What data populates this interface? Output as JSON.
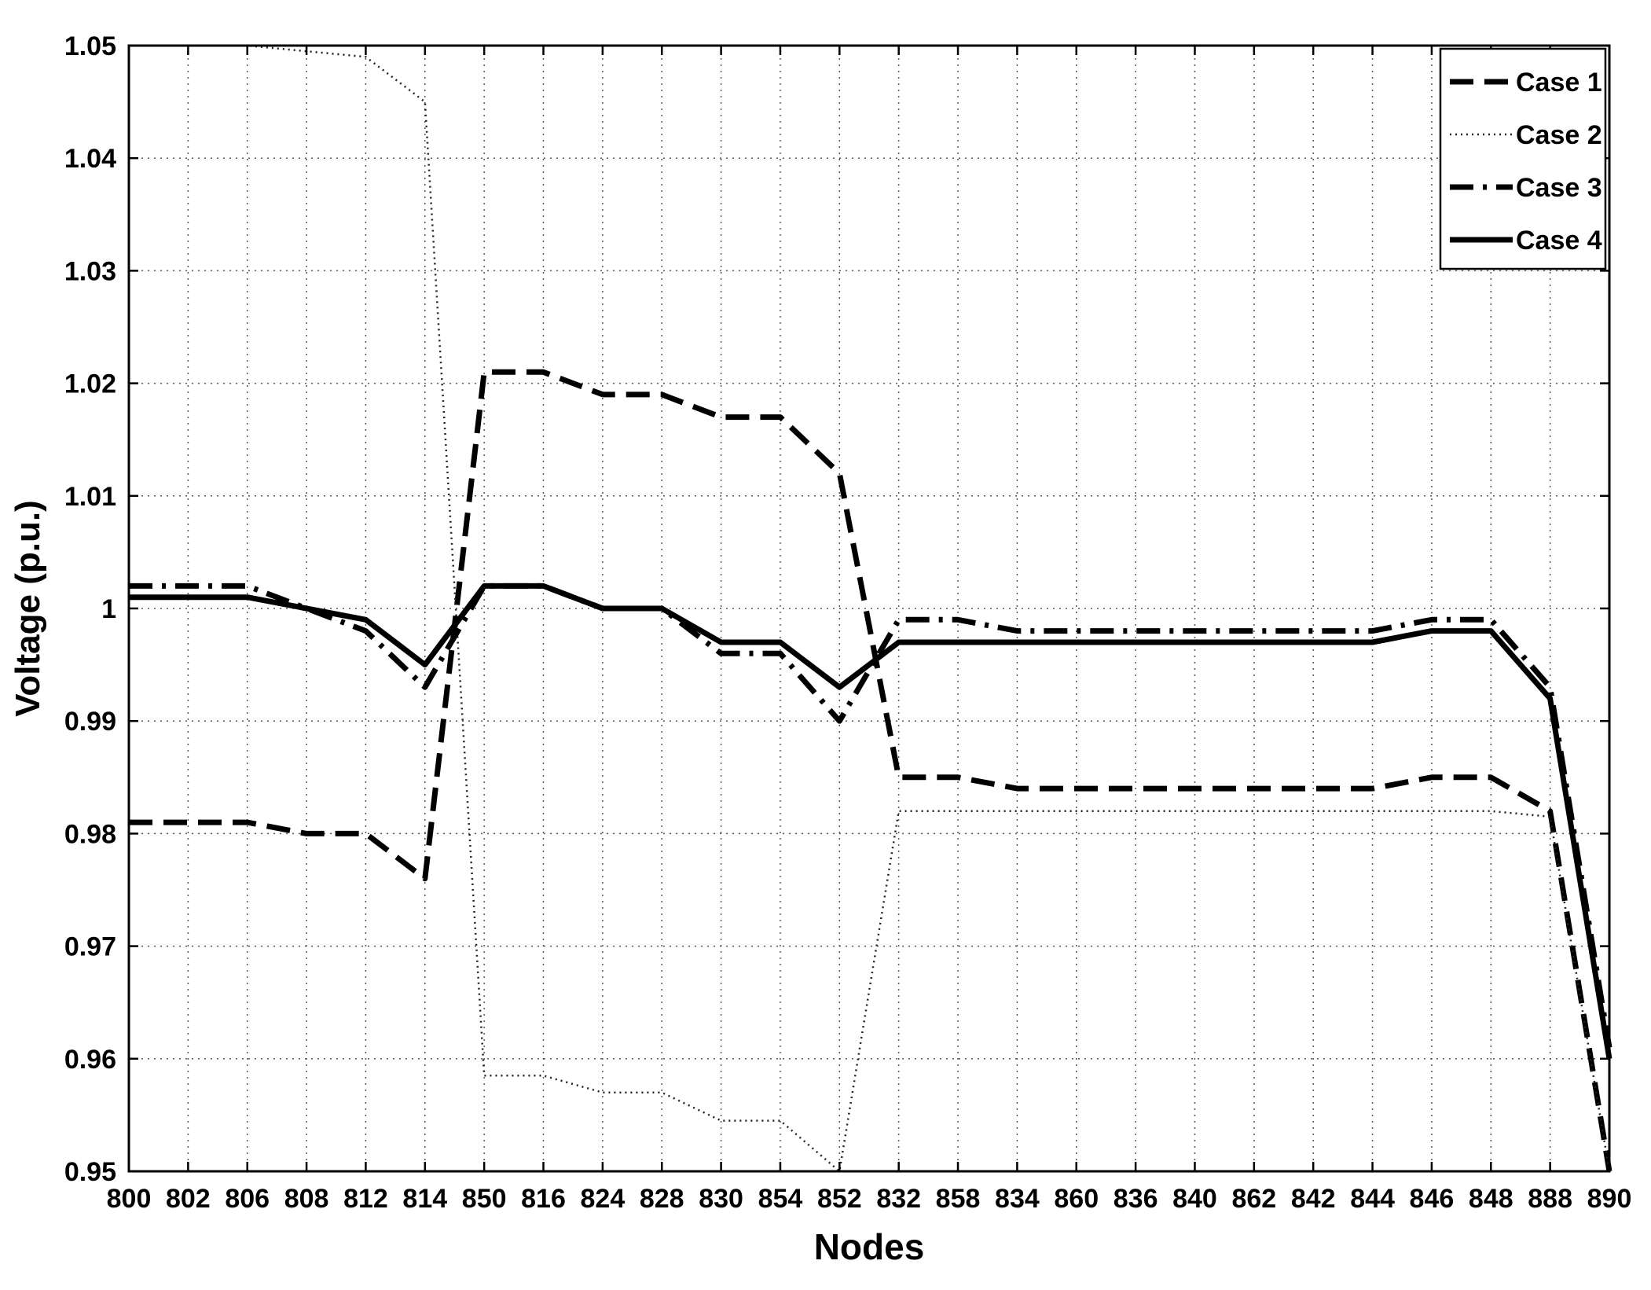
{
  "chart_data": {
    "type": "line",
    "title": "",
    "xlabel": "Nodes",
    "ylabel": "Voltage (p.u.)",
    "categories": [
      "800",
      "802",
      "806",
      "808",
      "812",
      "814",
      "850",
      "816",
      "824",
      "828",
      "830",
      "854",
      "852",
      "832",
      "858",
      "834",
      "860",
      "836",
      "840",
      "862",
      "842",
      "844",
      "846",
      "848",
      "888",
      "890"
    ],
    "ylim": [
      0.95,
      1.05
    ],
    "yticks": [
      "0.95",
      "0.96",
      "0.97",
      "0.98",
      "0.99",
      "1",
      "1.01",
      "1.02",
      "1.03",
      "1.04",
      "1.05"
    ],
    "grid": true,
    "legend_position": "top-right",
    "series": [
      {
        "name": "Case 1",
        "style": "dashed",
        "values": [
          0.981,
          0.981,
          0.981,
          0.98,
          0.98,
          0.976,
          1.021,
          1.021,
          1.019,
          1.019,
          1.017,
          1.017,
          1.012,
          0.985,
          0.985,
          0.984,
          0.984,
          0.984,
          0.984,
          0.984,
          0.984,
          0.984,
          0.985,
          0.985,
          0.982,
          0.95
        ]
      },
      {
        "name": "Case 2",
        "style": "dotted",
        "values": [
          1.05,
          1.05,
          1.05,
          1.0495,
          1.049,
          1.045,
          0.9585,
          0.9585,
          0.957,
          0.957,
          0.9545,
          0.9545,
          0.95,
          0.982,
          0.982,
          0.982,
          0.982,
          0.982,
          0.982,
          0.982,
          0.982,
          0.982,
          0.982,
          0.982,
          0.9815,
          0.95
        ]
      },
      {
        "name": "Case 3",
        "style": "dash-dot",
        "values": [
          1.002,
          1.002,
          1.002,
          1.0,
          0.998,
          0.993,
          1.002,
          1.002,
          1.0,
          1.0,
          0.996,
          0.996,
          0.99,
          0.999,
          0.999,
          0.998,
          0.998,
          0.998,
          0.998,
          0.998,
          0.998,
          0.998,
          0.999,
          0.999,
          0.993,
          0.961
        ]
      },
      {
        "name": "Case 4",
        "style": "solid",
        "values": [
          1.001,
          1.001,
          1.001,
          1.0,
          0.999,
          0.995,
          1.002,
          1.002,
          1.0,
          1.0,
          0.997,
          0.997,
          0.993,
          0.997,
          0.997,
          0.997,
          0.997,
          0.997,
          0.997,
          0.997,
          0.997,
          0.997,
          0.998,
          0.998,
          0.992,
          0.96
        ]
      }
    ]
  }
}
